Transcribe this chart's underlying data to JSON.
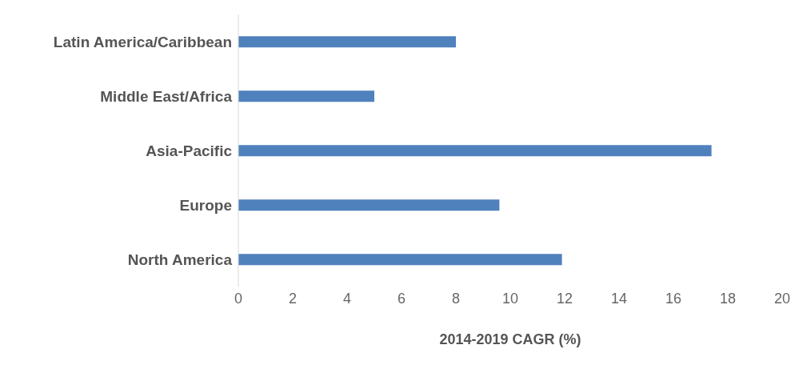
{
  "chart_data": {
    "type": "bar",
    "orientation": "horizontal",
    "xlabel": "2014-2019 CAGR  (%)",
    "categories": [
      "Latin America/Caribbean",
      "Middle East/Africa",
      "Asia-Pacific",
      "Europe",
      "North America"
    ],
    "values": [
      8,
      5,
      17.4,
      9.6,
      11.9
    ],
    "color": "#4f81bd",
    "xlim": [
      0,
      20
    ],
    "xticks": [
      0,
      2,
      4,
      6,
      8,
      10,
      12,
      14,
      16,
      18,
      20
    ],
    "grid": false
  }
}
